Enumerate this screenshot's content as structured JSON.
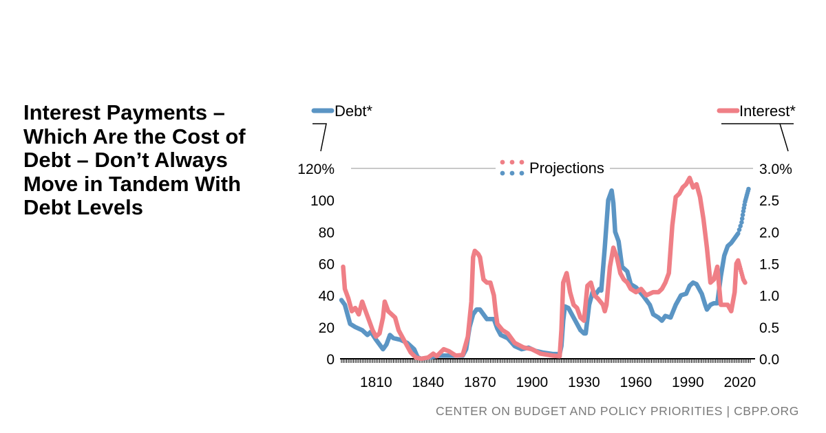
{
  "headline": "Interest Payments – Which Are the Cost of Debt – Don’t Always Move in Tandem With Debt Levels",
  "source": "CENTER ON BUDGET AND POLICY PRIORITIES | CBPP.ORG",
  "colors": {
    "debt": "#5b95c4",
    "interest": "#ef7f86",
    "text": "#000000",
    "grid": "#a6a6a6",
    "source": "#7a7a7a"
  },
  "chart_data": {
    "type": "line",
    "legend": {
      "debt_label": "Debt*",
      "interest_label": "Interest*",
      "projections_label": "Projections"
    },
    "x_range": [
      1790,
      2028
    ],
    "x_ticks": [
      "1810",
      "1840",
      "1870",
      "1900",
      "1930",
      "1960",
      "1990",
      "2020"
    ],
    "left_axis": {
      "ylim": [
        0,
        120
      ],
      "ticks": [
        0,
        20,
        40,
        60,
        80,
        100,
        120
      ],
      "tick_labels": [
        "0",
        "20",
        "40",
        "60",
        "80",
        "100",
        "120%"
      ]
    },
    "right_axis": {
      "ylim": [
        0,
        3.0
      ],
      "ticks": [
        0,
        0.5,
        1.0,
        1.5,
        2.0,
        2.5,
        3.0
      ],
      "tick_labels": [
        "0.0",
        "0.5",
        "1.0",
        "1.5",
        "2.0",
        "2.5",
        "3.0%"
      ]
    },
    "grid": "horizontal at top tick only",
    "series": [
      {
        "name": "Debt*",
        "axis": "left",
        "values": [
          [
            1790,
            37
          ],
          [
            1792,
            34
          ],
          [
            1795,
            22
          ],
          [
            1798,
            20
          ],
          [
            1802,
            18
          ],
          [
            1805,
            15
          ],
          [
            1807,
            17
          ],
          [
            1810,
            12
          ],
          [
            1812,
            9
          ],
          [
            1814,
            6
          ],
          [
            1816,
            9
          ],
          [
            1818,
            15
          ],
          [
            1820,
            13
          ],
          [
            1824,
            12
          ],
          [
            1828,
            10
          ],
          [
            1832,
            6
          ],
          [
            1834,
            1
          ],
          [
            1836,
            0
          ],
          [
            1842,
            1
          ],
          [
            1846,
            2
          ],
          [
            1850,
            2
          ],
          [
            1855,
            2
          ],
          [
            1860,
            2
          ],
          [
            1862,
            6
          ],
          [
            1864,
            20
          ],
          [
            1866,
            28
          ],
          [
            1868,
            31
          ],
          [
            1870,
            31
          ],
          [
            1872,
            28
          ],
          [
            1874,
            25
          ],
          [
            1878,
            25
          ],
          [
            1880,
            19
          ],
          [
            1882,
            15
          ],
          [
            1886,
            13
          ],
          [
            1890,
            8
          ],
          [
            1894,
            6
          ],
          [
            1898,
            7
          ],
          [
            1902,
            5
          ],
          [
            1906,
            4
          ],
          [
            1912,
            3
          ],
          [
            1916,
            3
          ],
          [
            1917,
            8
          ],
          [
            1918,
            24
          ],
          [
            1919,
            33
          ],
          [
            1921,
            32
          ],
          [
            1924,
            26
          ],
          [
            1928,
            18
          ],
          [
            1930,
            16
          ],
          [
            1931,
            16
          ],
          [
            1933,
            34
          ],
          [
            1935,
            42
          ],
          [
            1937,
            41
          ],
          [
            1939,
            44
          ],
          [
            1940,
            43
          ],
          [
            1942,
            70
          ],
          [
            1944,
            100
          ],
          [
            1946,
            106
          ],
          [
            1947,
            98
          ],
          [
            1948,
            80
          ],
          [
            1950,
            74
          ],
          [
            1952,
            58
          ],
          [
            1955,
            55
          ],
          [
            1957,
            47
          ],
          [
            1960,
            45
          ],
          [
            1964,
            40
          ],
          [
            1968,
            34
          ],
          [
            1970,
            28
          ],
          [
            1973,
            26
          ],
          [
            1975,
            24
          ],
          [
            1977,
            27
          ],
          [
            1980,
            26
          ],
          [
            1983,
            34
          ],
          [
            1986,
            40
          ],
          [
            1989,
            41
          ],
          [
            1991,
            46
          ],
          [
            1993,
            48
          ],
          [
            1995,
            47
          ],
          [
            1998,
            41
          ],
          [
            2000,
            34
          ],
          [
            2001,
            31
          ],
          [
            2003,
            34
          ],
          [
            2005,
            35
          ],
          [
            2007,
            35
          ],
          [
            2009,
            52
          ],
          [
            2011,
            65
          ],
          [
            2013,
            71
          ],
          [
            2015,
            73
          ],
          [
            2017,
            76
          ],
          [
            2019,
            79
          ]
        ],
        "projection": [
          [
            2019,
            79
          ],
          [
            2021,
            86
          ],
          [
            2022,
            93
          ],
          [
            2023,
            99
          ],
          [
            2024,
            103
          ],
          [
            2025,
            107
          ]
        ]
      },
      {
        "name": "Interest*",
        "axis": "right",
        "values": [
          [
            1791,
            1.45
          ],
          [
            1792,
            1.1
          ],
          [
            1794,
            0.95
          ],
          [
            1796,
            0.75
          ],
          [
            1798,
            0.8
          ],
          [
            1800,
            0.7
          ],
          [
            1802,
            0.9
          ],
          [
            1804,
            0.75
          ],
          [
            1806,
            0.6
          ],
          [
            1808,
            0.45
          ],
          [
            1810,
            0.35
          ],
          [
            1812,
            0.4
          ],
          [
            1814,
            0.65
          ],
          [
            1815,
            0.9
          ],
          [
            1817,
            0.75
          ],
          [
            1819,
            0.7
          ],
          [
            1821,
            0.65
          ],
          [
            1823,
            0.45
          ],
          [
            1826,
            0.3
          ],
          [
            1830,
            0.1
          ],
          [
            1833,
            0.02
          ],
          [
            1836,
            0.0
          ],
          [
            1840,
            0.02
          ],
          [
            1843,
            0.08
          ],
          [
            1845,
            0.04
          ],
          [
            1849,
            0.15
          ],
          [
            1852,
            0.12
          ],
          [
            1856,
            0.05
          ],
          [
            1860,
            0.06
          ],
          [
            1863,
            0.35
          ],
          [
            1865,
            0.9
          ],
          [
            1866,
            1.6
          ],
          [
            1867,
            1.7
          ],
          [
            1869,
            1.65
          ],
          [
            1870,
            1.6
          ],
          [
            1872,
            1.25
          ],
          [
            1874,
            1.2
          ],
          [
            1876,
            1.2
          ],
          [
            1878,
            1.0
          ],
          [
            1879,
            0.75
          ],
          [
            1880,
            0.55
          ],
          [
            1883,
            0.45
          ],
          [
            1886,
            0.4
          ],
          [
            1890,
            0.25
          ],
          [
            1895,
            0.18
          ],
          [
            1900,
            0.15
          ],
          [
            1905,
            0.08
          ],
          [
            1912,
            0.05
          ],
          [
            1916,
            0.04
          ],
          [
            1917,
            0.45
          ],
          [
            1918,
            1.2
          ],
          [
            1920,
            1.35
          ],
          [
            1922,
            1.05
          ],
          [
            1924,
            0.85
          ],
          [
            1926,
            0.8
          ],
          [
            1928,
            0.65
          ],
          [
            1930,
            0.6
          ],
          [
            1932,
            1.15
          ],
          [
            1934,
            1.2
          ],
          [
            1936,
            1.0
          ],
          [
            1938,
            0.95
          ],
          [
            1941,
            0.85
          ],
          [
            1942,
            0.75
          ],
          [
            1943,
            0.85
          ],
          [
            1945,
            1.45
          ],
          [
            1947,
            1.75
          ],
          [
            1949,
            1.6
          ],
          [
            1951,
            1.35
          ],
          [
            1953,
            1.25
          ],
          [
            1955,
            1.2
          ],
          [
            1957,
            1.1
          ],
          [
            1960,
            1.05
          ],
          [
            1963,
            1.1
          ],
          [
            1966,
            1.0
          ],
          [
            1970,
            1.05
          ],
          [
            1973,
            1.05
          ],
          [
            1975,
            1.1
          ],
          [
            1977,
            1.2
          ],
          [
            1979,
            1.35
          ],
          [
            1981,
            2.1
          ],
          [
            1983,
            2.55
          ],
          [
            1985,
            2.6
          ],
          [
            1987,
            2.7
          ],
          [
            1989,
            2.75
          ],
          [
            1991,
            2.85
          ],
          [
            1993,
            2.7
          ],
          [
            1995,
            2.75
          ],
          [
            1997,
            2.55
          ],
          [
            1999,
            2.2
          ],
          [
            2001,
            1.75
          ],
          [
            2003,
            1.2
          ],
          [
            2005,
            1.25
          ],
          [
            2007,
            1.45
          ],
          [
            2009,
            0.85
          ],
          [
            2011,
            0.85
          ],
          [
            2013,
            0.85
          ],
          [
            2015,
            0.75
          ],
          [
            2017,
            1.05
          ],
          [
            2018,
            1.5
          ],
          [
            2019,
            1.55
          ]
        ],
        "projection": [
          [
            2019,
            1.55
          ],
          [
            2020,
            1.45
          ],
          [
            2021,
            1.35
          ],
          [
            2022,
            1.25
          ],
          [
            2023,
            1.2
          ]
        ]
      }
    ]
  }
}
